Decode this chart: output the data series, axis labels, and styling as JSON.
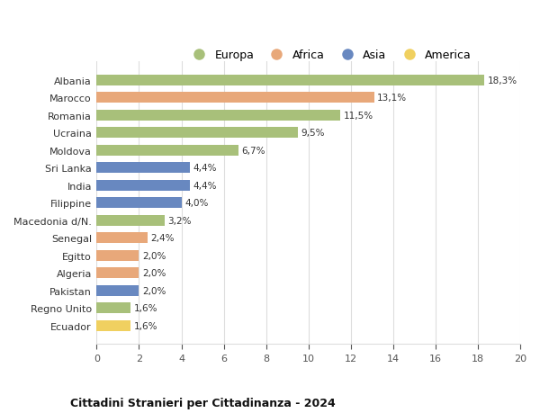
{
  "countries": [
    "Albania",
    "Marocco",
    "Romania",
    "Ucraina",
    "Moldova",
    "Sri Lanka",
    "India",
    "Filippine",
    "Macedonia d/N.",
    "Senegal",
    "Egitto",
    "Algeria",
    "Pakistan",
    "Regno Unito",
    "Ecuador"
  ],
  "values": [
    18.3,
    13.1,
    11.5,
    9.5,
    6.7,
    4.4,
    4.4,
    4.0,
    3.2,
    2.4,
    2.0,
    2.0,
    2.0,
    1.6,
    1.6
  ],
  "labels": [
    "18,3%",
    "13,1%",
    "11,5%",
    "9,5%",
    "6,7%",
    "4,4%",
    "4,4%",
    "4,0%",
    "3,2%",
    "2,4%",
    "2,0%",
    "2,0%",
    "2,0%",
    "1,6%",
    "1,6%"
  ],
  "continents": [
    "Europa",
    "Africa",
    "Europa",
    "Europa",
    "Europa",
    "Asia",
    "Asia",
    "Asia",
    "Europa",
    "Africa",
    "Africa",
    "Africa",
    "Asia",
    "Europa",
    "America"
  ],
  "colors": {
    "Europa": "#a8c07a",
    "Africa": "#e8a87a",
    "Asia": "#6888c0",
    "America": "#f0d060"
  },
  "legend_order": [
    "Europa",
    "Africa",
    "Asia",
    "America"
  ],
  "title": "Cittadini Stranieri per Cittadinanza - 2024",
  "xlim": [
    0,
    20
  ],
  "xticks": [
    0,
    2,
    4,
    6,
    8,
    10,
    12,
    14,
    16,
    18,
    20
  ],
  "background_color": "#ffffff",
  "grid_color": "#dddddd"
}
